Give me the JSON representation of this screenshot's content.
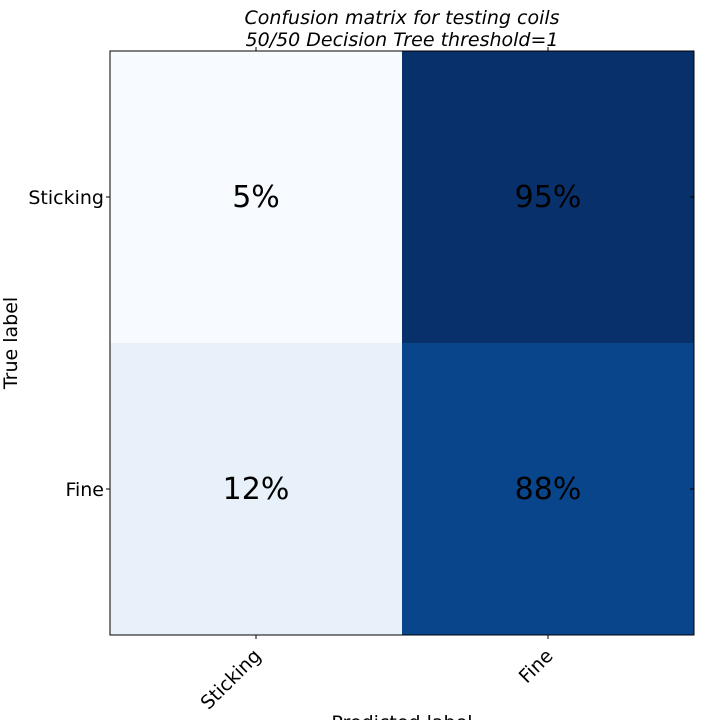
{
  "chart_data": {
    "type": "heatmap",
    "title": "Confusion matrix for testing coils",
    "subtitle": "50/50 Decision Tree threshold=1",
    "xlabel": "Predicted label",
    "ylabel": "True label",
    "x_categories": [
      "Sticking",
      "Fine"
    ],
    "y_categories": [
      "Sticking",
      "Fine"
    ],
    "values": [
      [
        5,
        95
      ],
      [
        12,
        88
      ]
    ],
    "cell_labels": [
      [
        "5%",
        "95%"
      ],
      [
        "12%",
        "88%"
      ]
    ],
    "value_range": [
      0,
      100
    ],
    "colormap": "Blues",
    "cell_colors": [
      [
        "#f7fbff",
        "#08306b"
      ],
      [
        "#e8f0f9",
        "#08458a"
      ]
    ],
    "text_color": "#000000",
    "grid": false
  }
}
